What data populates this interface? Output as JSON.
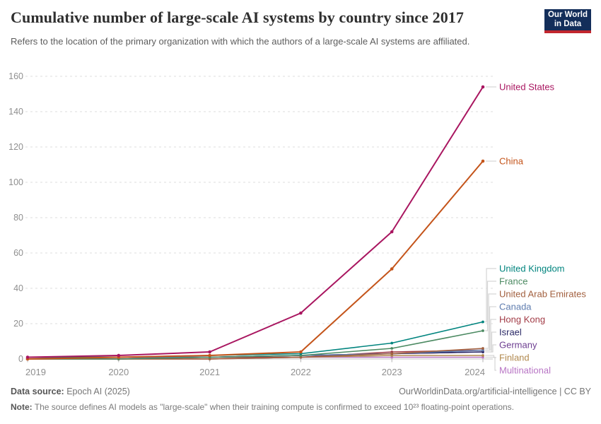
{
  "header": {
    "title": "Cumulative number of large-scale AI systems by country since 2017",
    "subtitle": "Refers to the location of the primary organization with which the authors of a large-scale AI systems are affiliated.",
    "logo": {
      "line1": "Our World",
      "line2": "in Data",
      "bg_color": "#132e5a",
      "accent_color": "#c2262e"
    }
  },
  "chart_data": {
    "type": "line",
    "title": "Cumulative number of large-scale AI systems by country since 2017",
    "x": [
      2019,
      2020,
      2021,
      2022,
      2023,
      2024
    ],
    "xlabel": "",
    "ylabel": "",
    "ylim": [
      0,
      160
    ],
    "yticks": [
      0,
      20,
      40,
      60,
      80,
      100,
      120,
      140,
      160
    ],
    "grid": "horizontal-dashed",
    "legend_position": "right-of-line-ends",
    "series": [
      {
        "name": "United States",
        "color": "#a91660",
        "values": [
          1,
          2,
          4,
          26,
          72,
          154
        ]
      },
      {
        "name": "China",
        "color": "#c4541a",
        "values": [
          0,
          1,
          2,
          4,
          51,
          112
        ]
      },
      {
        "name": "United Kingdom",
        "color": "#00847e",
        "values": [
          1,
          1,
          2,
          3,
          9,
          21
        ]
      },
      {
        "name": "France",
        "color": "#4c8a62",
        "values": [
          0,
          0,
          1,
          2,
          6,
          16
        ]
      },
      {
        "name": "United Arab Emirates",
        "color": "#a2603f",
        "values": [
          0,
          0,
          0,
          1,
          3,
          6
        ]
      },
      {
        "name": "Canada",
        "color": "#5e7cae",
        "values": [
          0,
          1,
          1,
          2,
          3,
          5
        ]
      },
      {
        "name": "Hong Kong",
        "color": "#a23c47",
        "values": [
          0,
          0,
          1,
          1,
          4,
          5
        ]
      },
      {
        "name": "Israel",
        "color": "#2a2866",
        "values": [
          1,
          1,
          1,
          2,
          3,
          4
        ]
      },
      {
        "name": "Germany",
        "color": "#6d3e91",
        "values": [
          0,
          0,
          1,
          2,
          3,
          4
        ]
      },
      {
        "name": "Finland",
        "color": "#b1894e",
        "values": [
          0,
          0,
          0,
          1,
          2,
          2
        ]
      },
      {
        "name": "Multinational",
        "color": "#b875c5",
        "values": [
          0,
          0,
          0,
          1,
          1,
          1
        ]
      }
    ]
  },
  "footer": {
    "datasource_label": "Data source:",
    "datasource_value": " Epoch AI (2025)",
    "link": "OurWorldinData.org/artificial-intelligence | CC BY",
    "note_label": "Note:",
    "note_value": " The source defines AI models as \"large-scale\" when their training compute is confirmed to exceed 10²³ floating-point operations."
  }
}
